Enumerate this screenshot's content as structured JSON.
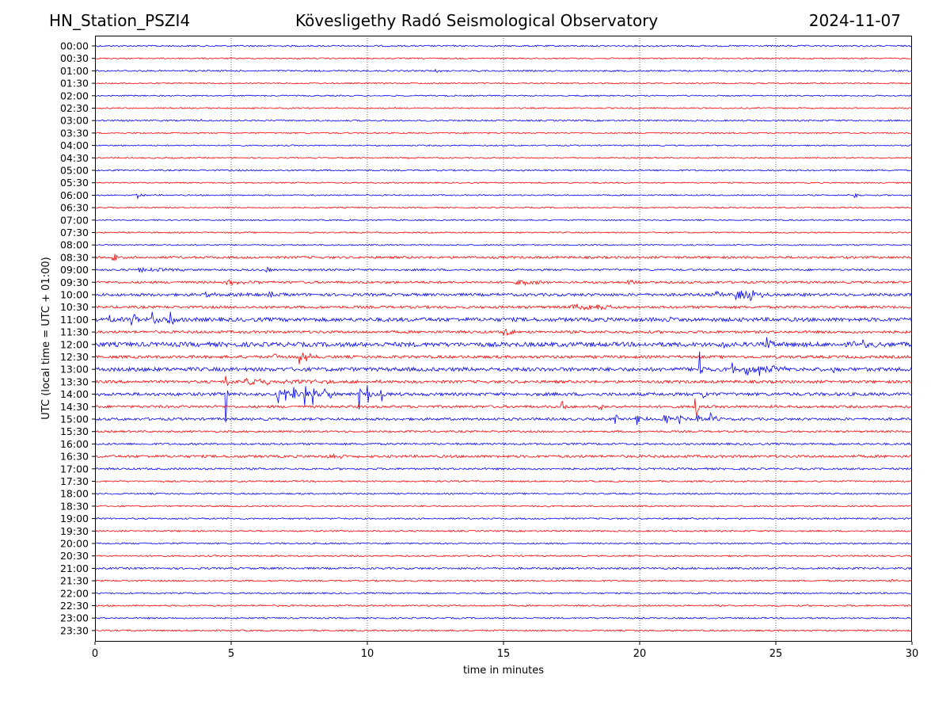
{
  "header": {
    "station": "HN_Station_PSZI4",
    "observatory": "Kövesligethy Radó Seismological Observatory",
    "date": "2024-11-07"
  },
  "chart_data": {
    "type": "line",
    "title": "Kövesligethy Radó Seismological Observatory",
    "xlabel": "time in minutes",
    "ylabel": "UTC (local time = UTC + 01:00)",
    "xlim": [
      0,
      30
    ],
    "xticks": [
      0,
      5,
      10,
      15,
      20,
      25,
      30
    ],
    "grid": "vertical-dotted",
    "colors": [
      "#0000ff",
      "#ff0000"
    ],
    "rows": [
      "00:00",
      "00:30",
      "01:00",
      "01:30",
      "02:00",
      "02:30",
      "03:00",
      "03:30",
      "04:00",
      "04:30",
      "05:00",
      "05:30",
      "06:00",
      "06:30",
      "07:00",
      "07:30",
      "08:00",
      "08:30",
      "09:00",
      "09:30",
      "10:00",
      "10:30",
      "11:00",
      "11:30",
      "12:00",
      "12:30",
      "13:00",
      "13:30",
      "14:00",
      "14:30",
      "15:00",
      "15:30",
      "16:00",
      "16:30",
      "17:00",
      "17:30",
      "18:00",
      "18:30",
      "19:00",
      "19:30",
      "20:00",
      "20:30",
      "21:00",
      "21:30",
      "22:00",
      "22:30",
      "23:00",
      "23:30"
    ],
    "noise": [
      1.2,
      1.0,
      1.2,
      1.0,
      1.0,
      1.0,
      1.2,
      1.0,
      1.0,
      1.0,
      1.2,
      1.0,
      1.0,
      1.0,
      1.0,
      1.0,
      1.0,
      1.8,
      1.5,
      1.8,
      2.2,
      2.0,
      3.0,
      2.0,
      3.5,
      2.2,
      3.0,
      2.2,
      2.5,
      2.0,
      2.0,
      1.5,
      1.5,
      2.0,
      1.5,
      1.2,
      1.2,
      1.2,
      1.2,
      1.2,
      1.2,
      1.2,
      1.5,
      1.2,
      1.2,
      1.2,
      1.2,
      1.2
    ],
    "events": [
      {
        "row": "01:00",
        "t": 12.5,
        "amp": 1.5,
        "dur": 0.5
      },
      {
        "row": "03:00",
        "t": 3.9,
        "amp": 3,
        "dur": 0.05
      },
      {
        "row": "06:00",
        "t": 1.5,
        "amp": 6,
        "dur": 0.15
      },
      {
        "row": "06:00",
        "t": 27.9,
        "amp": 5,
        "dur": 0.1
      },
      {
        "row": "08:30",
        "t": 0.65,
        "amp": 8,
        "dur": 0.15
      },
      {
        "row": "09:00",
        "t": 1.6,
        "amp": 3,
        "dur": 1.0
      },
      {
        "row": "09:00",
        "t": 6.3,
        "amp": 5,
        "dur": 0.15
      },
      {
        "row": "09:30",
        "t": 4.8,
        "amp": 3,
        "dur": 0.8
      },
      {
        "row": "09:30",
        "t": 15.5,
        "amp": 4,
        "dur": 0.6
      },
      {
        "row": "09:30",
        "t": 19.5,
        "amp": 3,
        "dur": 0.3
      },
      {
        "row": "10:00",
        "t": 3.8,
        "amp": 3,
        "dur": 1.0
      },
      {
        "row": "10:00",
        "t": 6.4,
        "amp": 6,
        "dur": 0.2
      },
      {
        "row": "10:00",
        "t": 22.8,
        "amp": 10,
        "dur": 0.1
      },
      {
        "row": "10:00",
        "t": 23.5,
        "amp": 7,
        "dur": 0.8
      },
      {
        "row": "10:00",
        "t": 24.1,
        "amp": 11,
        "dur": 0.1
      },
      {
        "row": "10:30",
        "t": 17.5,
        "amp": 6,
        "dur": 0.7
      },
      {
        "row": "10:30",
        "t": 18.4,
        "amp": 5,
        "dur": 0.5
      },
      {
        "row": "11:00",
        "t": 0.5,
        "amp": 8,
        "dur": 0.2
      },
      {
        "row": "11:00",
        "t": 1.35,
        "amp": 10,
        "dur": 0.15
      },
      {
        "row": "11:00",
        "t": 2.1,
        "amp": 11,
        "dur": 0.15
      },
      {
        "row": "11:00",
        "t": 2.7,
        "amp": 14,
        "dur": 0.15
      },
      {
        "row": "11:00",
        "t": 21.1,
        "amp": 4,
        "dur": 0.1
      },
      {
        "row": "11:30",
        "t": 15.0,
        "amp": 6,
        "dur": 0.3
      },
      {
        "row": "12:00",
        "t": 24.6,
        "amp": 10,
        "dur": 0.2
      },
      {
        "row": "12:00",
        "t": 27.9,
        "amp": 8,
        "dur": 0.4
      },
      {
        "row": "12:00",
        "t": 23.1,
        "amp": 6,
        "dur": 0.1
      },
      {
        "row": "12:30",
        "t": 7.5,
        "amp": 10,
        "dur": 0.3
      },
      {
        "row": "12:30",
        "t": 6.6,
        "amp": 5,
        "dur": 0.1
      },
      {
        "row": "13:00",
        "t": 23.4,
        "amp": 9,
        "dur": 0.15
      },
      {
        "row": "13:00",
        "t": 23.9,
        "amp": 10,
        "dur": 0.2
      },
      {
        "row": "13:00",
        "t": 24.4,
        "amp": 9,
        "dur": 0.2
      },
      {
        "row": "13:00",
        "t": 24.9,
        "amp": 7,
        "dur": 0.3
      },
      {
        "row": "13:00",
        "t": 22.2,
        "amp": 25,
        "dur": 0.08
      },
      {
        "row": "13:00",
        "t": 27.1,
        "amp": 6,
        "dur": 0.1
      },
      {
        "row": "13:00",
        "t": 1.5,
        "amp": 5,
        "dur": 0.05
      },
      {
        "row": "13:30",
        "t": 5.5,
        "amp": 5,
        "dur": 2.0
      },
      {
        "row": "13:30",
        "t": 4.8,
        "amp": 10,
        "dur": 0.1
      },
      {
        "row": "14:00",
        "t": 4.8,
        "amp": 40,
        "dur": 0.05
      },
      {
        "row": "14:00",
        "t": 6.7,
        "amp": 18,
        "dur": 0.08
      },
      {
        "row": "14:00",
        "t": 7.0,
        "amp": 18,
        "dur": 0.08
      },
      {
        "row": "14:00",
        "t": 7.3,
        "amp": 18,
        "dur": 0.08
      },
      {
        "row": "14:00",
        "t": 7.7,
        "amp": 18,
        "dur": 0.08
      },
      {
        "row": "14:00",
        "t": 8.0,
        "amp": 18,
        "dur": 0.08
      },
      {
        "row": "14:00",
        "t": 8.4,
        "amp": 18,
        "dur": 0.08
      },
      {
        "row": "14:00",
        "t": 8.6,
        "amp": 18,
        "dur": 0.08
      },
      {
        "row": "14:00",
        "t": 9.7,
        "amp": 20,
        "dur": 0.06
      },
      {
        "row": "14:00",
        "t": 10.0,
        "amp": 20,
        "dur": 0.06
      },
      {
        "row": "14:00",
        "t": 10.5,
        "amp": 20,
        "dur": 0.06
      },
      {
        "row": "14:00",
        "t": 22.3,
        "amp": 12,
        "dur": 0.1
      },
      {
        "row": "14:30",
        "t": 17.15,
        "amp": 60,
        "dur": 0.04
      },
      {
        "row": "14:30",
        "t": 18.5,
        "amp": 8,
        "dur": 0.15
      },
      {
        "row": "14:30",
        "t": 22.05,
        "amp": 65,
        "dur": 0.04
      },
      {
        "row": "15:00",
        "t": 19.1,
        "amp": 7,
        "dur": 0.1
      },
      {
        "row": "15:00",
        "t": 19.9,
        "amp": 10,
        "dur": 0.2
      },
      {
        "row": "15:00",
        "t": 20.9,
        "amp": 7,
        "dur": 0.2
      },
      {
        "row": "15:00",
        "t": 21.4,
        "amp": 7,
        "dur": 0.2
      },
      {
        "row": "15:00",
        "t": 22.1,
        "amp": 8,
        "dur": 0.2
      },
      {
        "row": "15:00",
        "t": 22.6,
        "amp": 7,
        "dur": 0.2
      },
      {
        "row": "16:30",
        "t": 8.5,
        "amp": 3,
        "dur": 0.6
      },
      {
        "row": "21:30",
        "t": 29.2,
        "amp": 2,
        "dur": 0.6
      },
      {
        "row": "22:00",
        "t": 2.5,
        "amp": 4,
        "dur": 0.05
      }
    ]
  }
}
